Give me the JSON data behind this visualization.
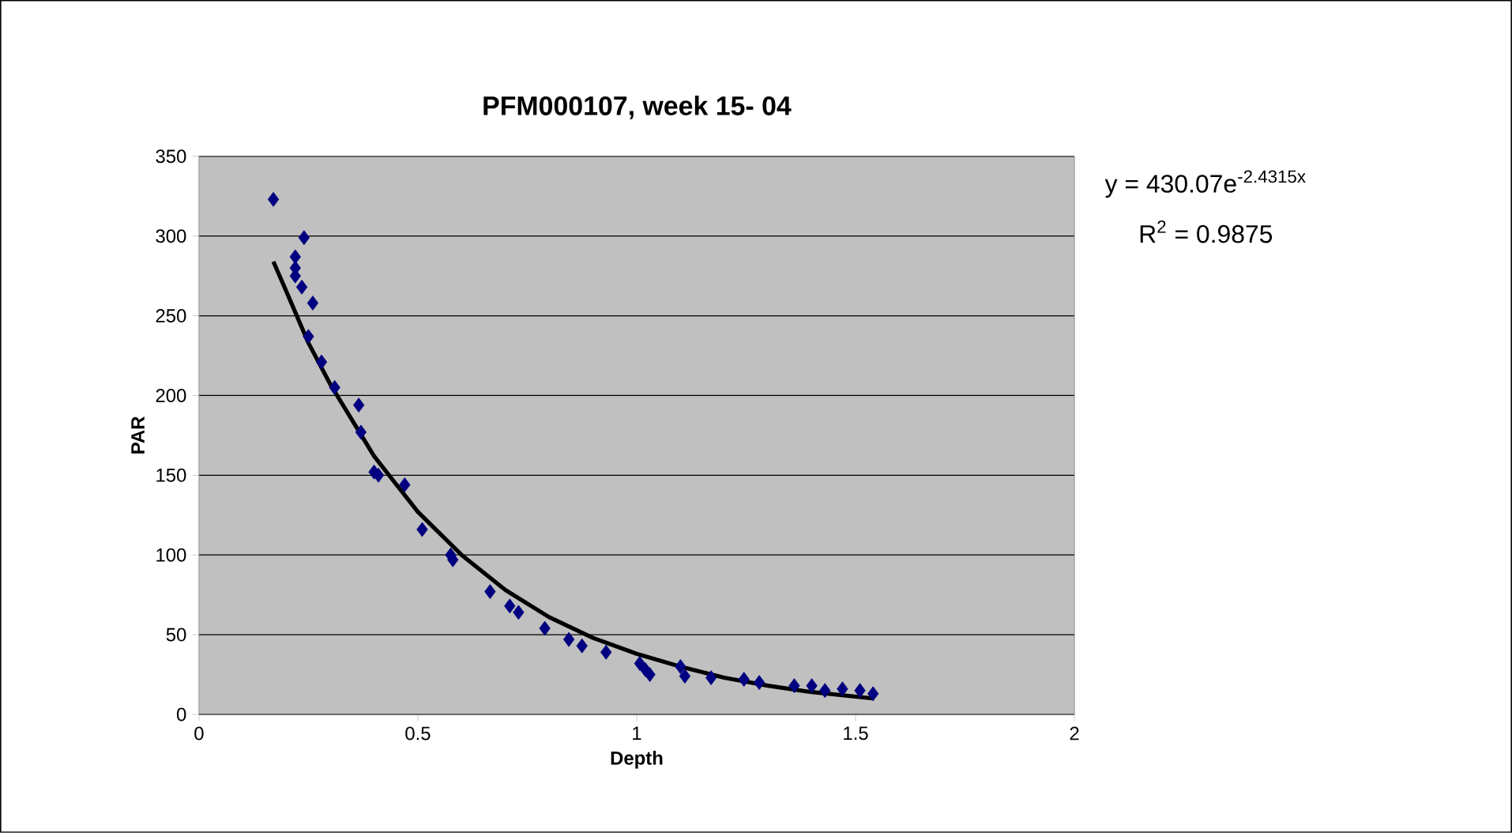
{
  "chart_data": {
    "type": "scatter",
    "title": "PFM000107, week 15- 04",
    "xlabel": "Depth",
    "ylabel": "PAR",
    "xlim": [
      0,
      2
    ],
    "xticks": [
      0,
      0.5,
      1,
      1.5,
      2
    ],
    "ylim": [
      0,
      350
    ],
    "yticks": [
      0,
      50,
      100,
      150,
      200,
      250,
      300,
      350
    ],
    "grid": "y",
    "annotations": [
      "y = 430.07e$^{-2.4315x}$",
      "R$^{2}$ = 0.9875"
    ],
    "series": [
      {
        "color": "#000080",
        "marker": "diamond",
        "x": [
          0.17,
          0.24,
          0.22,
          0.22,
          0.22,
          0.235,
          0.26,
          0.25,
          0.28,
          0.31,
          0.365,
          0.37,
          0.4,
          0.41,
          0.47,
          0.51,
          0.575,
          0.58,
          0.665,
          0.71,
          0.73,
          0.79,
          0.845,
          0.875,
          0.93,
          1.007,
          1.02,
          1.03,
          1.1,
          1.11,
          1.17,
          1.245,
          1.28,
          1.36,
          1.4,
          1.43,
          1.47,
          1.51,
          1.54
        ],
        "values": [
          323,
          299,
          287,
          280,
          275,
          268,
          258,
          237,
          221,
          205,
          194,
          177,
          152,
          150,
          144,
          116,
          100,
          97,
          77,
          68,
          64,
          54,
          47,
          43,
          39,
          32,
          28,
          25,
          30,
          24,
          23,
          22,
          20,
          18,
          18,
          15,
          16,
          15,
          13
        ]
      },
      {
        "type": "line",
        "color": "#000000",
        "marker": "none",
        "line_style": "solid",
        "x": [
          0.17,
          0.2,
          0.25,
          0.3,
          0.4,
          0.5,
          0.6,
          0.7,
          0.8,
          0.9,
          1.0,
          1.1,
          1.2,
          1.3,
          1.4,
          1.54
        ],
        "values": [
          284,
          265,
          233,
          207,
          162,
          127,
          100,
          78,
          61,
          48,
          38,
          30,
          23,
          18,
          14,
          10
        ]
      }
    ]
  }
}
